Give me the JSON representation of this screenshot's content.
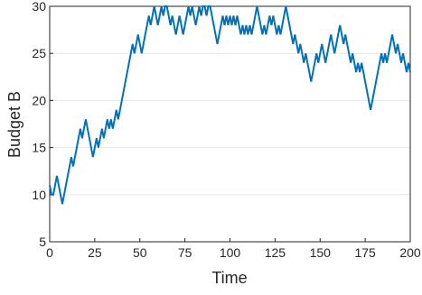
{
  "chart_data": {
    "type": "line",
    "xlabel": "Time",
    "ylabel": "Budget B",
    "x": [
      0,
      1,
      2,
      3,
      4,
      5,
      6,
      7,
      8,
      9,
      10,
      11,
      12,
      13,
      14,
      15,
      16,
      17,
      18,
      19,
      20,
      21,
      22,
      23,
      24,
      25,
      26,
      27,
      28,
      29,
      30,
      31,
      32,
      33,
      34,
      35,
      36,
      37,
      38,
      39,
      40,
      41,
      42,
      43,
      44,
      45,
      46,
      47,
      48,
      49,
      50,
      51,
      52,
      53,
      54,
      55,
      56,
      57,
      58,
      59,
      60,
      61,
      62,
      63,
      64,
      65,
      66,
      67,
      68,
      69,
      70,
      71,
      72,
      73,
      74,
      75,
      76,
      77,
      78,
      79,
      80,
      81,
      82,
      83,
      84,
      85,
      86,
      87,
      88,
      89,
      90,
      91,
      92,
      93,
      94,
      95,
      96,
      97,
      98,
      99,
      100,
      101,
      102,
      103,
      104,
      105,
      106,
      107,
      108,
      109,
      110,
      111,
      112,
      113,
      114,
      115,
      116,
      117,
      118,
      119,
      120,
      121,
      122,
      123,
      124,
      125,
      126,
      127,
      128,
      129,
      130,
      131,
      132,
      133,
      134,
      135,
      136,
      137,
      138,
      139,
      140,
      141,
      142,
      143,
      144,
      145,
      146,
      147,
      148,
      149,
      150,
      151,
      152,
      153,
      154,
      155,
      156,
      157,
      158,
      159,
      160,
      161,
      162,
      163,
      164,
      165,
      166,
      167,
      168,
      169,
      170,
      171,
      172,
      173,
      174,
      175,
      176,
      177,
      178,
      179,
      180,
      181,
      182,
      183,
      184,
      185,
      186,
      187,
      188,
      189,
      190,
      191,
      192,
      193,
      194,
      195,
      196,
      197,
      198,
      199,
      200
    ],
    "series": [
      {
        "name": "Budget B",
        "color": "#0072bd",
        "values": [
          11,
          10,
          10,
          11,
          12,
          11,
          10,
          9,
          10,
          11,
          12,
          13,
          14,
          13,
          14,
          15,
          16,
          17,
          16,
          17,
          18,
          17,
          16,
          15,
          14,
          15,
          16,
          15,
          16,
          17,
          16,
          17,
          18,
          17,
          18,
          17,
          18,
          19,
          18,
          19,
          20,
          21,
          22,
          23,
          24,
          25,
          26,
          25,
          26,
          27,
          26,
          25,
          26,
          27,
          28,
          29,
          28,
          29,
          30,
          29,
          28,
          29,
          30,
          29,
          30,
          30,
          29,
          28,
          29,
          28,
          27,
          28,
          29,
          28,
          27,
          28,
          29,
          30,
          29,
          30,
          29,
          28,
          29,
          30,
          29,
          30,
          30,
          29,
          30,
          30,
          29,
          28,
          27,
          26,
          27,
          28,
          29,
          28,
          29,
          28,
          29,
          28,
          29,
          28,
          29,
          28,
          27,
          28,
          27,
          28,
          27,
          28,
          27,
          28,
          29,
          30,
          29,
          28,
          27,
          28,
          27,
          28,
          29,
          28,
          29,
          28,
          27,
          28,
          27,
          28,
          29,
          30,
          29,
          28,
          27,
          26,
          27,
          26,
          25,
          26,
          25,
          24,
          25,
          24,
          23,
          22,
          23,
          24,
          25,
          24,
          25,
          26,
          25,
          24,
          25,
          26,
          27,
          26,
          25,
          26,
          27,
          28,
          27,
          26,
          27,
          26,
          25,
          24,
          25,
          24,
          23,
          24,
          23,
          24,
          23,
          22,
          21,
          20,
          19,
          20,
          21,
          22,
          23,
          24,
          25,
          24,
          25,
          24,
          25,
          26,
          27,
          26,
          25,
          26,
          25,
          24,
          25,
          24,
          23,
          24,
          23
        ]
      }
    ],
    "xlim": [
      0,
      200
    ],
    "ylim": [
      5,
      30
    ],
    "xticks": [
      0,
      25,
      50,
      75,
      100,
      125,
      150,
      175,
      200
    ],
    "yticks": [
      5,
      10,
      15,
      20,
      25,
      30
    ],
    "grid": true
  }
}
